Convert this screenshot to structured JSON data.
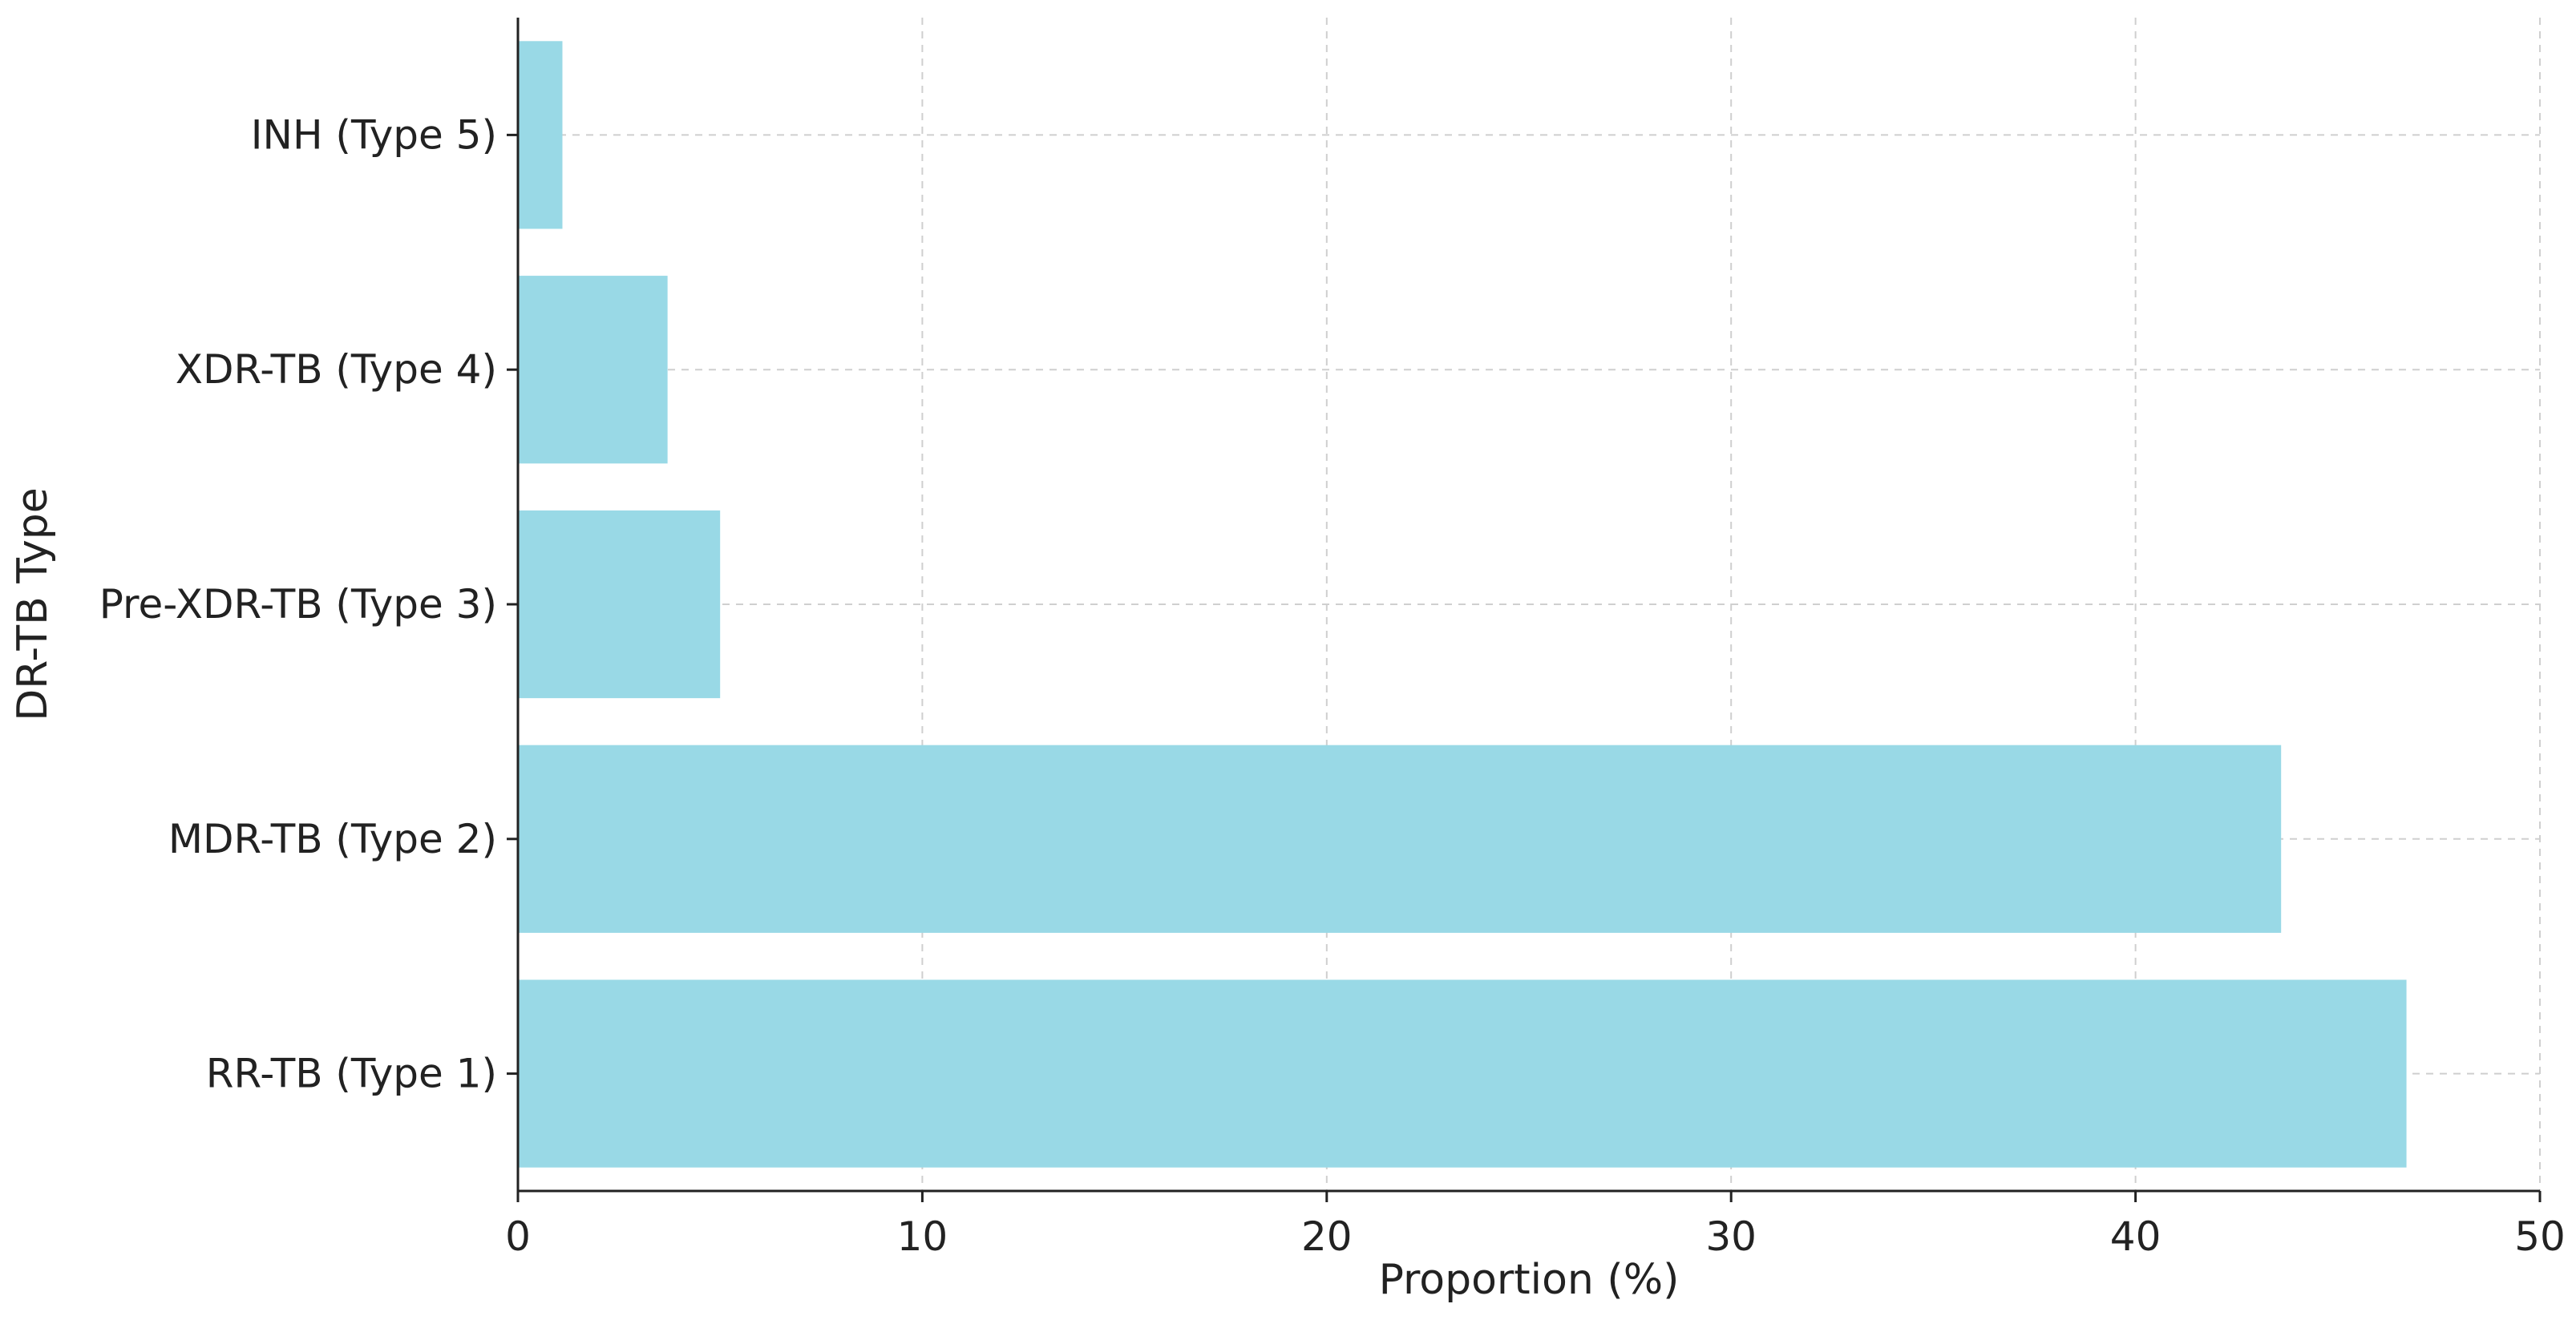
{
  "chart_data": {
    "type": "bar",
    "orientation": "horizontal",
    "categories": [
      "RR-TB (Type 1)",
      "MDR-TB (Type 2)",
      "Pre-XDR-TB (Type 3)",
      "XDR-TB (Type 4)",
      "INH (Type 5)"
    ],
    "values": [
      46.7,
      43.6,
      5.0,
      3.7,
      1.1
    ],
    "title": "",
    "xlabel": "Proportion (%)",
    "ylabel": "DR-TB Type",
    "xlim": [
      0,
      50
    ],
    "xticks": [
      "0",
      "10",
      "20",
      "30",
      "40",
      "50"
    ],
    "grid": true,
    "bar_color": "#99d9e6"
  }
}
